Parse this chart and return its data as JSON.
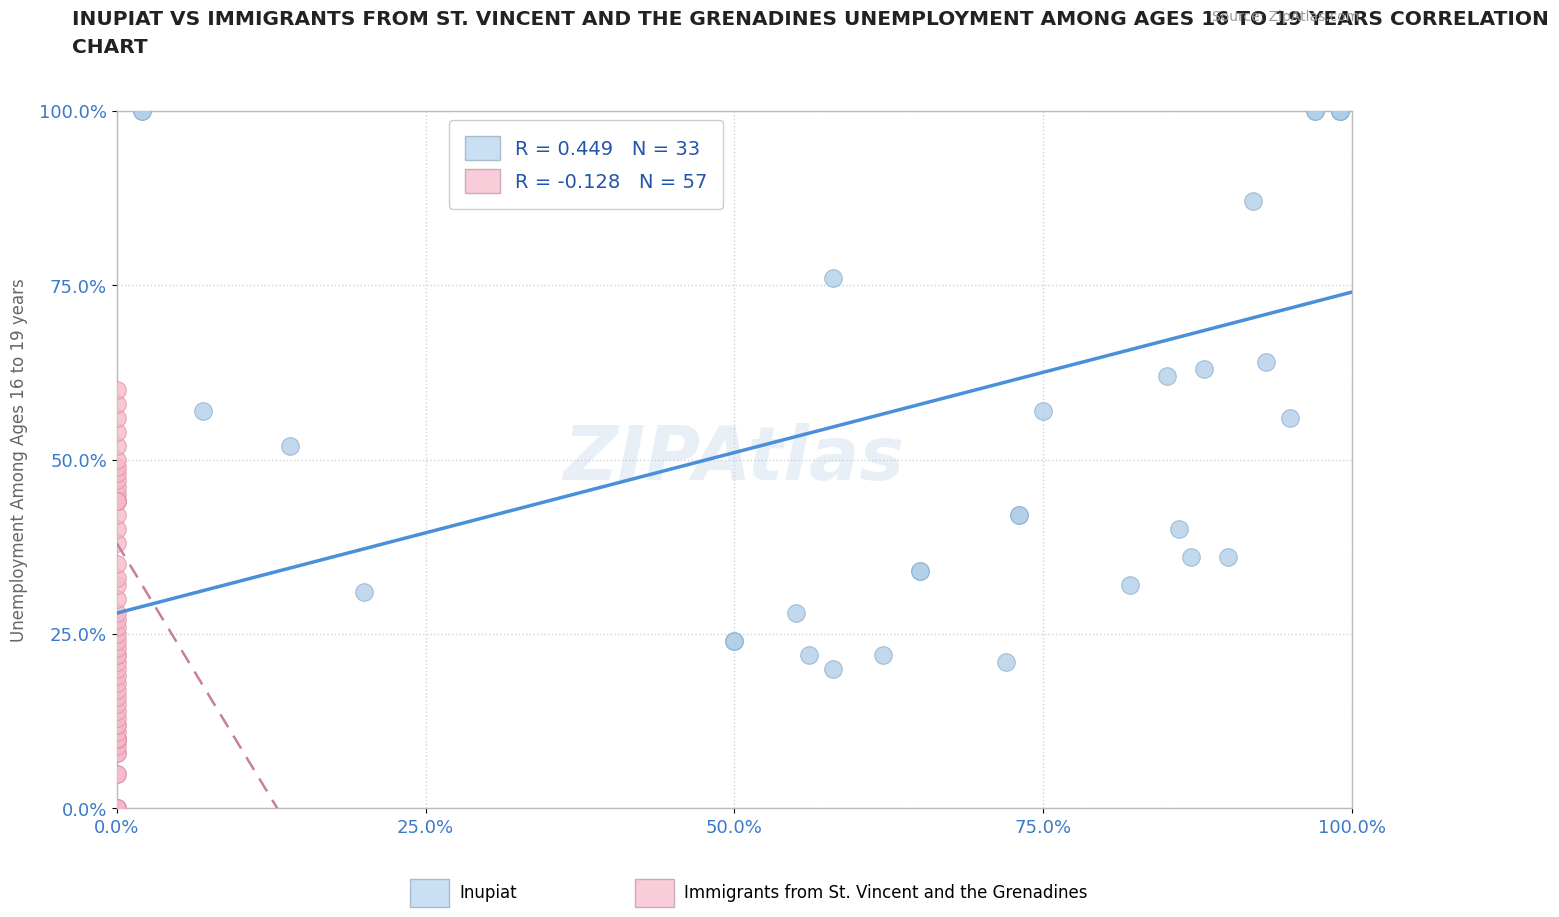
{
  "title_line1": "INUPIAT VS IMMIGRANTS FROM ST. VINCENT AND THE GRENADINES UNEMPLOYMENT AMONG AGES 16 TO 19 YEARS CORRELATION",
  "title_line2": "CHART",
  "source_text": "Source: ZipAtlas.com",
  "ylabel": "Unemployment Among Ages 16 to 19 years",
  "watermark": "ZIPAtlas",
  "xlim": [
    0,
    1
  ],
  "ylim": [
    0,
    1
  ],
  "xticks": [
    0.0,
    0.25,
    0.5,
    0.75,
    1.0
  ],
  "yticks": [
    0.0,
    0.25,
    0.5,
    0.75,
    1.0
  ],
  "xticklabels": [
    "0.0%",
    "25.0%",
    "50.0%",
    "75.0%",
    "100.0%"
  ],
  "yticklabels": [
    "0.0%",
    "25.0%",
    "50.0%",
    "75.0%",
    "100.0%"
  ],
  "blue_color": "#aecde8",
  "pink_color": "#f4b8c8",
  "blue_edge": "#88aed0",
  "pink_edge": "#e090a8",
  "trend_blue_color": "#4a90d9",
  "trend_pink_color": "#c88098",
  "legend_blue_fill": "#c8dff4",
  "legend_pink_fill": "#f8ccd8",
  "R_blue": 0.449,
  "N_blue": 33,
  "R_pink": -0.128,
  "N_pink": 57,
  "inupiat_x": [
    0.02,
    0.02,
    0.07,
    0.14,
    0.2,
    0.5,
    0.5,
    0.55,
    0.56,
    0.58,
    0.58,
    0.62,
    0.65,
    0.65,
    0.72,
    0.73,
    0.73,
    0.75,
    0.82,
    0.85,
    0.86,
    0.87,
    0.88,
    0.9,
    0.92,
    0.93,
    0.95,
    0.97,
    0.97,
    0.99,
    0.99,
    0.99,
    0.99
  ],
  "inupiat_y": [
    1.0,
    1.0,
    0.57,
    0.52,
    0.31,
    0.24,
    0.24,
    0.28,
    0.22,
    0.76,
    0.2,
    0.22,
    0.34,
    0.34,
    0.21,
    0.42,
    0.42,
    0.57,
    0.32,
    0.62,
    0.4,
    0.36,
    0.63,
    0.36,
    0.87,
    0.64,
    0.56,
    1.0,
    1.0,
    1.0,
    1.0,
    1.0,
    1.0
  ],
  "immigrants_x": [
    0.0,
    0.0,
    0.0,
    0.0,
    0.0,
    0.0,
    0.0,
    0.0,
    0.0,
    0.0,
    0.0,
    0.0,
    0.0,
    0.0,
    0.0,
    0.0,
    0.0,
    0.0,
    0.0,
    0.0,
    0.0,
    0.0,
    0.0,
    0.0,
    0.0,
    0.0,
    0.0,
    0.0,
    0.0,
    0.0,
    0.0,
    0.0,
    0.0,
    0.0,
    0.0,
    0.0,
    0.0,
    0.0,
    0.0,
    0.0,
    0.0,
    0.0,
    0.0,
    0.0,
    0.0,
    0.0,
    0.0,
    0.0,
    0.0,
    0.0,
    0.0,
    0.0,
    0.0,
    0.0,
    0.0,
    0.0,
    0.0
  ],
  "immigrants_y": [
    0.0,
    0.0,
    0.0,
    0.0,
    0.0,
    0.05,
    0.05,
    0.08,
    0.08,
    0.09,
    0.1,
    0.1,
    0.1,
    0.1,
    0.1,
    0.11,
    0.12,
    0.12,
    0.13,
    0.14,
    0.15,
    0.16,
    0.17,
    0.18,
    0.19,
    0.2,
    0.21,
    0.22,
    0.22,
    0.23,
    0.24,
    0.25,
    0.26,
    0.27,
    0.28,
    0.3,
    0.32,
    0.33,
    0.35,
    0.38,
    0.4,
    0.42,
    0.44,
    0.45,
    0.46,
    0.47,
    0.48,
    0.49,
    0.5,
    0.52,
    0.54,
    0.56,
    0.58,
    0.6,
    0.44,
    0.44,
    0.44
  ],
  "pink_trend_x0": 0.0,
  "pink_trend_y0": 0.38,
  "pink_trend_x1": 0.13,
  "pink_trend_y1": 0.0,
  "blue_trend_x0": 0.0,
  "blue_trend_y0": 0.28,
  "blue_trend_x1": 1.0,
  "blue_trend_y1": 0.74,
  "background_color": "#ffffff",
  "grid_color": "#cccccc",
  "title_color": "#222222",
  "axis_label_color": "#666666",
  "tick_color": "#3a7ac8",
  "marker_size": 160
}
